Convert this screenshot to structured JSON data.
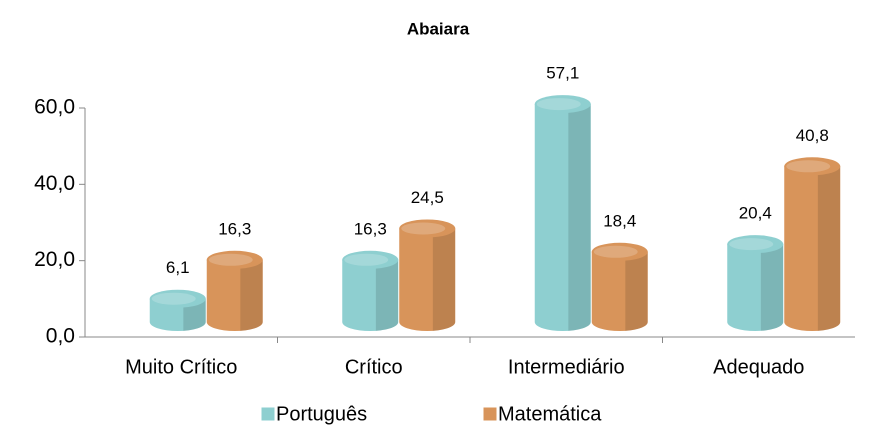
{
  "chart_data": {
    "type": "bar",
    "title": "Abaiara",
    "categories": [
      "Muito Crítico",
      "Crítico",
      "Intermediário",
      "Adequado"
    ],
    "series": [
      {
        "name": "Português",
        "color": "#8ecfd0",
        "values": [
          6.1,
          16.3,
          57.1,
          20.4
        ],
        "value_labels": [
          "6,1",
          "16,3",
          "57,1",
          "20,4"
        ]
      },
      {
        "name": "Matemática",
        "color": "#d8945a",
        "values": [
          16.3,
          24.5,
          18.4,
          40.8
        ],
        "value_labels": [
          "16,3",
          "24,5",
          "18,4",
          "40,8"
        ]
      }
    ],
    "ylim": [
      0,
      60
    ],
    "yticks": [
      {
        "value": 0,
        "label": "0,0"
      },
      {
        "value": 20,
        "label": "20,0"
      },
      {
        "value": 40,
        "label": "40,0"
      },
      {
        "value": 60,
        "label": "60,0"
      }
    ],
    "grid": false,
    "legend": "bottom"
  }
}
